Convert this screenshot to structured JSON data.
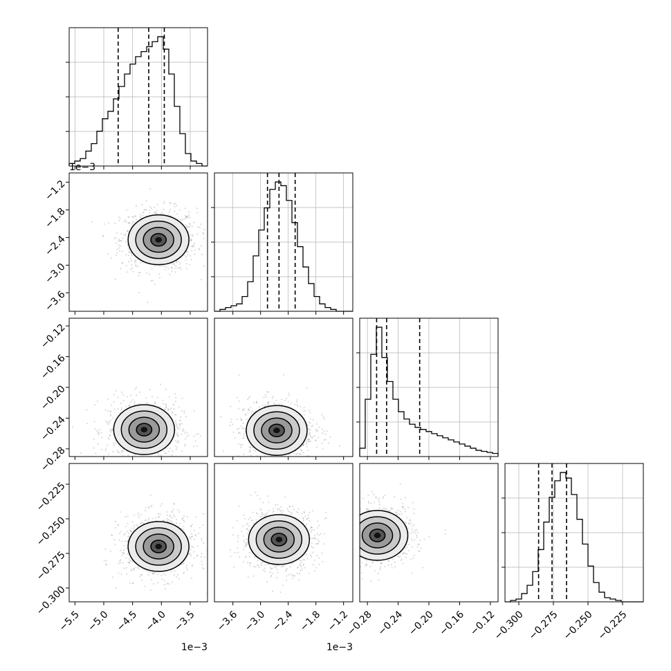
{
  "colors": {
    "foreground": "#000000",
    "grid": "#b0b0b0",
    "background": "#ffffff",
    "scatter": "#888888"
  },
  "chart_data": {
    "type": "corner",
    "params": [
      {
        "key": "p0",
        "range": [
          -5.6,
          -3.2
        ],
        "ticks": [
          -5.5,
          -5.0,
          -4.5,
          -4.0,
          -3.5
        ],
        "tick_labels": [
          "−5.5",
          "−5.0",
          "−4.5",
          "−4.0",
          "−3.5"
        ],
        "offset_text": "1e−3",
        "quantiles": [
          -4.75,
          -4.22,
          -3.95
        ],
        "hist_values": [
          1,
          2,
          3,
          6,
          9,
          14,
          19,
          22,
          27,
          32,
          37,
          41,
          44,
          46,
          48,
          50,
          52,
          47,
          37,
          24,
          13,
          5,
          2,
          1,
          0
        ]
      },
      {
        "key": "p1",
        "range": [
          -4.0,
          -1.0
        ],
        "ticks": [
          -3.6,
          -3.0,
          -2.4,
          -1.8,
          -1.2
        ],
        "tick_labels": [
          "−3.6",
          "−3.0",
          "−2.4",
          "−1.8",
          "−1.2"
        ],
        "offset_text": "1e−3",
        "quantiles": [
          -2.85,
          -2.6,
          -2.25
        ],
        "hist_values": [
          0,
          1,
          2,
          3,
          4,
          8,
          16,
          30,
          44,
          56,
          66,
          70,
          68,
          60,
          48,
          35,
          24,
          15,
          8,
          4,
          2,
          1,
          0,
          0,
          0
        ]
      },
      {
        "key": "p2",
        "range": [
          -0.29,
          -0.11
        ],
        "ticks": [
          -0.28,
          -0.24,
          -0.2,
          -0.16,
          -0.12
        ],
        "tick_labels": [
          "−0.28",
          "−0.24",
          "−0.20",
          "−0.16",
          "−0.12"
        ],
        "offset_text": "",
        "quantiles": [
          -0.268,
          -0.255,
          -0.212
        ],
        "hist_values": [
          8,
          55,
          98,
          124,
          95,
          72,
          55,
          43,
          36,
          31,
          28,
          26,
          24,
          22,
          20,
          18,
          16,
          14,
          12,
          10,
          8,
          6,
          5,
          4,
          3
        ]
      },
      {
        "key": "p3",
        "range": [
          -0.31,
          -0.21
        ],
        "ticks": [
          -0.3,
          -0.275,
          -0.25,
          -0.225
        ],
        "tick_labels": [
          "−0.300",
          "−0.275",
          "−0.250",
          "−0.225"
        ],
        "offset_text": "",
        "quantiles": [
          -0.2857,
          -0.276,
          -0.2655
        ],
        "hist_values": [
          0,
          1,
          2,
          6,
          12,
          22,
          38,
          58,
          76,
          88,
          94,
          90,
          78,
          60,
          42,
          26,
          14,
          7,
          3,
          2,
          1,
          0,
          0,
          0,
          0
        ]
      }
    ],
    "pairs": [
      {
        "row": 1,
        "col": 0,
        "mode": [
          -4.05,
          -2.45
        ]
      },
      {
        "row": 2,
        "col": 0,
        "mode": [
          -4.3,
          -0.255
        ]
      },
      {
        "row": 2,
        "col": 1,
        "mode": [
          -2.65,
          -0.256
        ]
      },
      {
        "row": 3,
        "col": 0,
        "mode": [
          -4.05,
          -0.27
        ]
      },
      {
        "row": 3,
        "col": 1,
        "mode": [
          -2.6,
          -0.265
        ]
      },
      {
        "row": 3,
        "col": 2,
        "mode": [
          -0.267,
          -0.262
        ]
      }
    ]
  }
}
